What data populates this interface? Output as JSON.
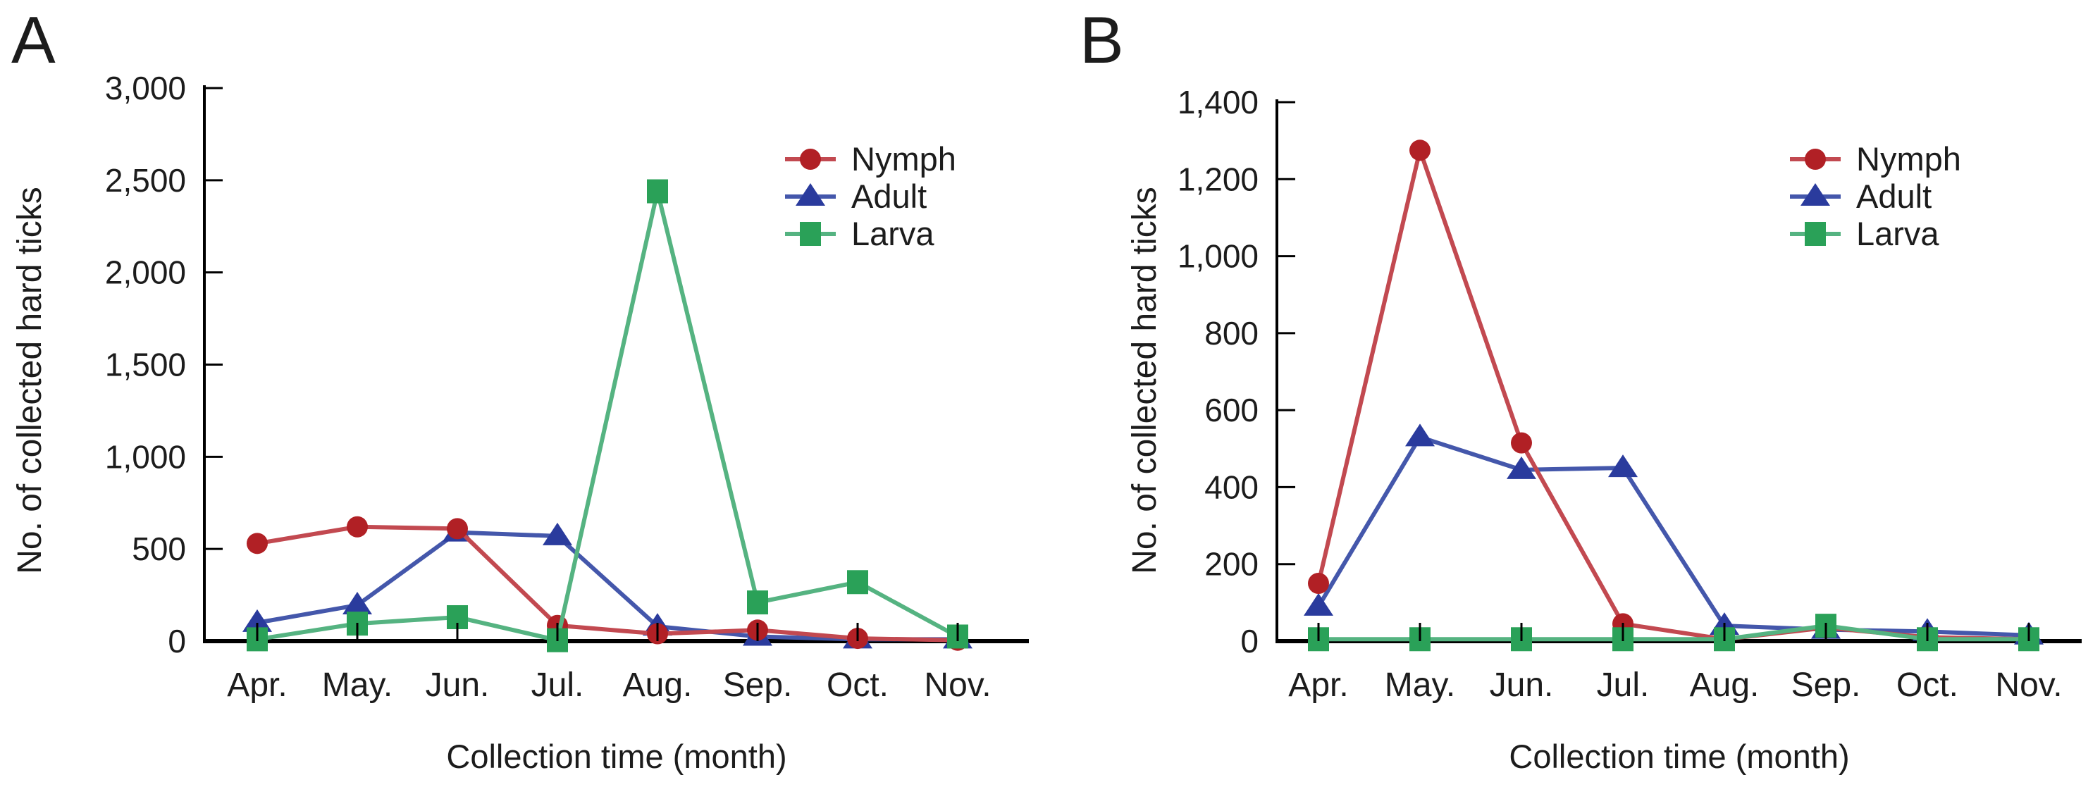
{
  "chart_data": [
    {
      "type": "line",
      "panel_letter": "A",
      "xlabel": "Collection time (month)",
      "ylabel": "No. of collected hard ticks",
      "categories": [
        "Apr.",
        "May.",
        "Jun.",
        "Jul.",
        "Aug.",
        "Sep.",
        "Oct.",
        "Nov."
      ],
      "ylim": [
        0,
        3000
      ],
      "ytick_step": 500,
      "yticklabels": [
        "0",
        "500",
        "1,000",
        "1,500",
        "2,000",
        "2,500",
        "3,000"
      ],
      "grid": false,
      "legend_position": "inside-top-right",
      "legend_labels": [
        "Nymph",
        "Adult",
        "Larva"
      ],
      "series": [
        {
          "name": "Nymph",
          "marker": "circle",
          "marker_color": "#b12025",
          "line_color": "#c24950",
          "values": [
            530,
            620,
            610,
            85,
            40,
            60,
            15,
            5
          ]
        },
        {
          "name": "Adult",
          "marker": "triangle",
          "marker_color": "#2a3b9d",
          "line_color": "#4457ab",
          "values": [
            100,
            195,
            590,
            570,
            80,
            25,
            10,
            10
          ]
        },
        {
          "name": "Larva",
          "marker": "square",
          "marker_color": "#2aa158",
          "line_color": "#55b381",
          "values": [
            10,
            95,
            130,
            5,
            2440,
            210,
            320,
            25
          ]
        }
      ]
    },
    {
      "type": "line",
      "panel_letter": "B",
      "xlabel": "Collection time (month)",
      "ylabel": "No. of collected hard ticks",
      "categories": [
        "Apr.",
        "May.",
        "Jun.",
        "Jul.",
        "Aug.",
        "Sep.",
        "Oct.",
        "Nov."
      ],
      "ylim": [
        0,
        1400
      ],
      "ytick_step": 200,
      "yticklabels": [
        "0",
        "200",
        "400",
        "600",
        "800",
        "1,000",
        "1,200",
        "1,400"
      ],
      "grid": false,
      "legend_position": "inside-top-right",
      "legend_labels": [
        "Nymph",
        "Adult",
        "Larva"
      ],
      "series": [
        {
          "name": "Nymph",
          "marker": "circle",
          "marker_color": "#b12025",
          "line_color": "#c24950",
          "values": [
            150,
            1275,
            515,
            45,
            5,
            35,
            10,
            5
          ]
        },
        {
          "name": "Adult",
          "marker": "triangle",
          "marker_color": "#2a3b9d",
          "line_color": "#4457ab",
          "values": [
            90,
            530,
            445,
            450,
            40,
            30,
            25,
            15
          ]
        },
        {
          "name": "Larva",
          "marker": "square",
          "marker_color": "#2aa158",
          "line_color": "#55b381",
          "values": [
            5,
            5,
            5,
            5,
            5,
            40,
            5,
            5
          ]
        }
      ]
    }
  ],
  "colors": {
    "axis": "#000000",
    "text": "#1c1c1c",
    "background": "#ffffff"
  }
}
